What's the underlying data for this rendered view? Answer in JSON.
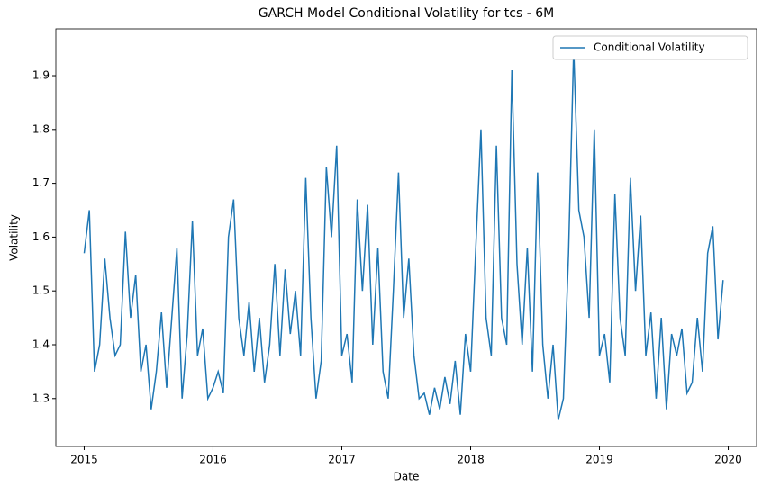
{
  "chart_data": {
    "type": "line",
    "title": "GARCH Model Conditional Volatility for tcs - 6M",
    "x_label": "Date",
    "y_label": "Volatility",
    "x": [
      2015.0,
      2015.04,
      2015.08,
      2015.12,
      2015.16,
      2015.2,
      2015.24,
      2015.28,
      2015.32,
      2015.36,
      2015.4,
      2015.44,
      2015.48,
      2015.52,
      2015.56,
      2015.6,
      2015.64,
      2015.68,
      2015.72,
      2015.76,
      2015.8,
      2015.84,
      2015.88,
      2015.92,
      2015.96,
      2016.0,
      2016.04,
      2016.08,
      2016.12,
      2016.16,
      2016.2,
      2016.24,
      2016.28,
      2016.32,
      2016.36,
      2016.4,
      2016.44,
      2016.48,
      2016.52,
      2016.56,
      2016.6,
      2016.64,
      2016.68,
      2016.72,
      2016.76,
      2016.8,
      2016.84,
      2016.88,
      2016.92,
      2016.96,
      2017.0,
      2017.04,
      2017.08,
      2017.12,
      2017.16,
      2017.2,
      2017.24,
      2017.28,
      2017.32,
      2017.36,
      2017.4,
      2017.44,
      2017.48,
      2017.52,
      2017.56,
      2017.6,
      2017.64,
      2017.68,
      2017.72,
      2017.76,
      2017.8,
      2017.84,
      2017.88,
      2017.92,
      2017.96,
      2018.0,
      2018.04,
      2018.08,
      2018.12,
      2018.16,
      2018.2,
      2018.24,
      2018.28,
      2018.32,
      2018.36,
      2018.4,
      2018.44,
      2018.48,
      2018.52,
      2018.56,
      2018.6,
      2018.64,
      2018.68,
      2018.72,
      2018.76,
      2018.8,
      2018.84,
      2018.88,
      2018.92,
      2018.96,
      2019.0,
      2019.04,
      2019.08,
      2019.12,
      2019.16,
      2019.2,
      2019.24,
      2019.28,
      2019.32,
      2019.36,
      2019.4,
      2019.44,
      2019.48,
      2019.52,
      2019.56,
      2019.6,
      2019.64,
      2019.68,
      2019.72,
      2019.76,
      2019.8,
      2019.84,
      2019.88,
      2019.92,
      2019.96
    ],
    "series": [
      {
        "name": "Conditional Volatility",
        "color": "#1f77b4",
        "values": [
          1.57,
          1.65,
          1.35,
          1.4,
          1.56,
          1.45,
          1.38,
          1.4,
          1.61,
          1.45,
          1.53,
          1.35,
          1.4,
          1.28,
          1.35,
          1.46,
          1.32,
          1.45,
          1.58,
          1.3,
          1.42,
          1.63,
          1.38,
          1.43,
          1.3,
          1.32,
          1.35,
          1.31,
          1.6,
          1.67,
          1.45,
          1.38,
          1.48,
          1.35,
          1.45,
          1.33,
          1.4,
          1.55,
          1.38,
          1.54,
          1.42,
          1.5,
          1.38,
          1.71,
          1.45,
          1.3,
          1.37,
          1.73,
          1.6,
          1.77,
          1.38,
          1.42,
          1.33,
          1.67,
          1.5,
          1.66,
          1.4,
          1.58,
          1.35,
          1.3,
          1.5,
          1.72,
          1.45,
          1.56,
          1.38,
          1.3,
          1.31,
          1.27,
          1.32,
          1.28,
          1.34,
          1.29,
          1.37,
          1.27,
          1.42,
          1.35,
          1.58,
          1.8,
          1.45,
          1.38,
          1.77,
          1.45,
          1.4,
          1.91,
          1.55,
          1.4,
          1.58,
          1.35,
          1.72,
          1.4,
          1.3,
          1.4,
          1.26,
          1.3,
          1.57,
          1.95,
          1.65,
          1.6,
          1.45,
          1.8,
          1.38,
          1.42,
          1.33,
          1.68,
          1.45,
          1.38,
          1.71,
          1.5,
          1.64,
          1.38,
          1.46,
          1.3,
          1.45,
          1.28,
          1.42,
          1.38,
          1.43,
          1.31,
          1.33,
          1.45,
          1.35,
          1.57,
          1.62,
          1.41,
          1.52
        ]
      }
    ],
    "xlim": [
      2014.78,
      2020.22
    ],
    "xticks": [
      2015,
      2016,
      2017,
      2018,
      2019,
      2020
    ],
    "ylim": [
      1.211,
      1.987
    ],
    "yticks": [
      1.3,
      1.4,
      1.5,
      1.6,
      1.7,
      1.8,
      1.9
    ],
    "grid": false,
    "legend": "upper right"
  }
}
